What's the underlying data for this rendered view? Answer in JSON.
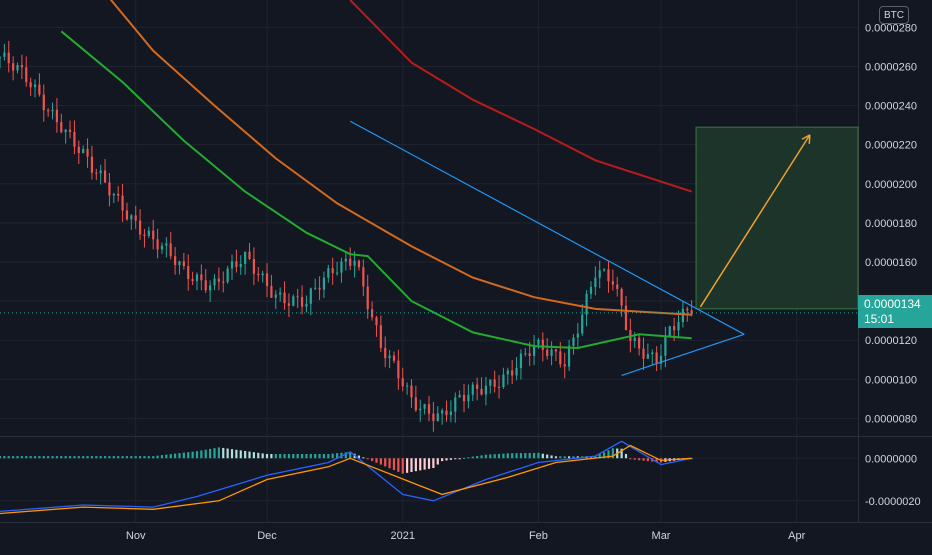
{
  "symbol_badge": "BTC",
  "current_price": {
    "value": "0.0000134",
    "countdown": "15:01"
  },
  "colors": {
    "background": "#131722",
    "grid": "#1f2430",
    "axis_text": "#d1d4dc",
    "up": "#26a69a",
    "down": "#ef5350",
    "ma_green": "#22ab2f",
    "ma_orange": "#d2691e",
    "ma_red": "#b71c1c",
    "trendline": "#2196f3",
    "arrow": "#f0a030",
    "target_box": "#1e3a2a",
    "macd_line": "#2962ff",
    "signal_line": "#ff9800"
  },
  "chart_data": [
    {
      "type": "candlestick",
      "y_axis_side": "right",
      "ytick_labels": [
        "0.0000280",
        "0.0000260",
        "0.0000240",
        "0.0000220",
        "0.0000200",
        "0.0000180",
        "0.0000160",
        "0.0000140",
        "0.0000120",
        "0.0000100",
        "0.0000080"
      ],
      "yticks": [
        2.8e-05,
        2.6e-05,
        2.4e-05,
        2.2e-05,
        2e-05,
        1.8e-05,
        1.6e-05,
        1.4e-05,
        1.2e-05,
        1e-05,
        8e-06
      ],
      "ylim": [
        7.1e-06,
        2.94e-05
      ],
      "xtick_labels": [
        "Nov",
        "Dec",
        "2021",
        "Feb",
        "Mar",
        "Apr"
      ],
      "xtick_dates": [
        "2020-11-01",
        "2020-12-01",
        "2021-01-01",
        "2021-02-01",
        "2021-03-01",
        "2021-04-01"
      ],
      "x_range": [
        "2020-10-01",
        "2021-04-15"
      ],
      "current_price": 1.34e-05,
      "close_series": {
        "dates": [
          "2020-10-01",
          "2020-10-08",
          "2020-10-15",
          "2020-10-22",
          "2020-10-29",
          "2020-11-05",
          "2020-11-12",
          "2020-11-19",
          "2020-11-26",
          "2020-12-03",
          "2020-12-10",
          "2020-12-17",
          "2020-12-21",
          "2020-12-27",
          "2021-01-03",
          "2021-01-10",
          "2021-01-17",
          "2021-01-24",
          "2021-01-31",
          "2021-02-07",
          "2021-02-14",
          "2021-02-18",
          "2021-02-22",
          "2021-02-28",
          "2021-03-03",
          "2021-03-08"
        ],
        "values": [
          2.65e-05,
          2.5e-05,
          2.32e-05,
          2.06e-05,
          1.9e-05,
          1.7e-05,
          1.55e-05,
          1.5e-05,
          1.6e-05,
          1.45e-05,
          1.38e-05,
          1.58e-05,
          1.65e-05,
          1.15e-05,
          9e-06,
          8.2e-06,
          9.2e-06,
          1.03e-05,
          1.15e-05,
          1.1e-05,
          1.55e-05,
          1.48e-05,
          1.2e-05,
          1.12e-05,
          1.25e-05,
          1.34e-05
        ]
      },
      "moving_averages": [
        {
          "color": "#22ab2f",
          "dates": [
            "2020-10-15",
            "2020-10-29",
            "2020-11-12",
            "2020-11-26",
            "2020-12-10",
            "2020-12-20",
            "2020-12-24",
            "2021-01-03",
            "2021-01-17",
            "2021-01-31",
            "2021-02-10",
            "2021-02-24",
            "2021-03-08"
          ],
          "values": [
            2.78e-05,
            2.52e-05,
            2.22e-05,
            1.96e-05,
            1.75e-05,
            1.64e-05,
            1.63e-05,
            1.4e-05,
            1.24e-05,
            1.17e-05,
            1.16e-05,
            1.23e-05,
            1.21e-05
          ]
        },
        {
          "color": "#d2691e",
          "dates": [
            "2020-10-26",
            "2020-11-05",
            "2020-11-19",
            "2020-12-03",
            "2020-12-17",
            "2021-01-03",
            "2021-01-17",
            "2021-01-31",
            "2021-02-14",
            "2021-03-08"
          ],
          "values": [
            2.95e-05,
            2.68e-05,
            2.4e-05,
            2.13e-05,
            1.9e-05,
            1.68e-05,
            1.52e-05,
            1.42e-05,
            1.36e-05,
            1.33e-05
          ]
        },
        {
          "color": "#b71c1c",
          "dates": [
            "2020-12-20",
            "2021-01-03",
            "2021-01-17",
            "2021-01-31",
            "2021-02-14",
            "2021-03-08"
          ],
          "values": [
            2.94e-05,
            2.62e-05,
            2.43e-05,
            2.28e-05,
            2.12e-05,
            1.96e-05
          ]
        }
      ],
      "annotations": {
        "descending_line": {
          "dates": [
            "2020-12-20",
            "2021-03-20"
          ],
          "values": [
            2.32e-05,
            1.23e-05
          ]
        },
        "support_line": {
          "dates": [
            "2021-02-20",
            "2021-03-20"
          ],
          "values": [
            1.02e-05,
            1.23e-05
          ]
        },
        "target_box": {
          "dates": [
            "2021-03-09",
            "2021-04-15"
          ],
          "values": [
            2.29e-05,
            1.36e-05
          ]
        },
        "arrow": {
          "dates": [
            "2021-03-10",
            "2021-04-04"
          ],
          "values": [
            1.37e-05,
            2.25e-05
          ]
        }
      }
    },
    {
      "type": "histogram+line",
      "name_role": "MACD pane",
      "ytick_labels": [
        "0.0000000",
        "-0.0000020"
      ],
      "yticks": [
        0.0,
        -2e-06
      ],
      "ylim": [
        -3e-06,
        1e-06
      ],
      "macd": {
        "dates": [
          "2020-10-01",
          "2020-10-20",
          "2020-11-05",
          "2020-11-15",
          "2020-12-01",
          "2020-12-15",
          "2020-12-20",
          "2021-01-01",
          "2021-01-08",
          "2021-01-20",
          "2021-02-01",
          "2021-02-14",
          "2021-02-20",
          "2021-03-01",
          "2021-03-08"
        ],
        "values": [
          -2.5e-06,
          -2.2e-06,
          -2.3e-06,
          -1.8e-06,
          -8e-07,
          -2e-07,
          3e-07,
          -1.7e-06,
          -2e-06,
          -1e-06,
          -2e-07,
          1e-07,
          8e-07,
          -3e-07,
          0.0
        ]
      },
      "signal": {
        "dates": [
          "2020-10-01",
          "2020-10-20",
          "2020-11-05",
          "2020-11-20",
          "2020-12-01",
          "2020-12-15",
          "2020-12-20",
          "2021-01-05",
          "2021-01-10",
          "2021-01-25",
          "2021-02-05",
          "2021-02-18",
          "2021-02-22",
          "2021-03-01",
          "2021-03-08"
        ],
        "values": [
          -2.6e-06,
          -2.3e-06,
          -2.4e-06,
          -2e-06,
          -1e-06,
          -4e-07,
          0.0,
          -1.3e-06,
          -1.7e-06,
          -9e-07,
          -2e-07,
          1e-07,
          6e-07,
          -1e-07,
          0.0
        ]
      }
    }
  ]
}
